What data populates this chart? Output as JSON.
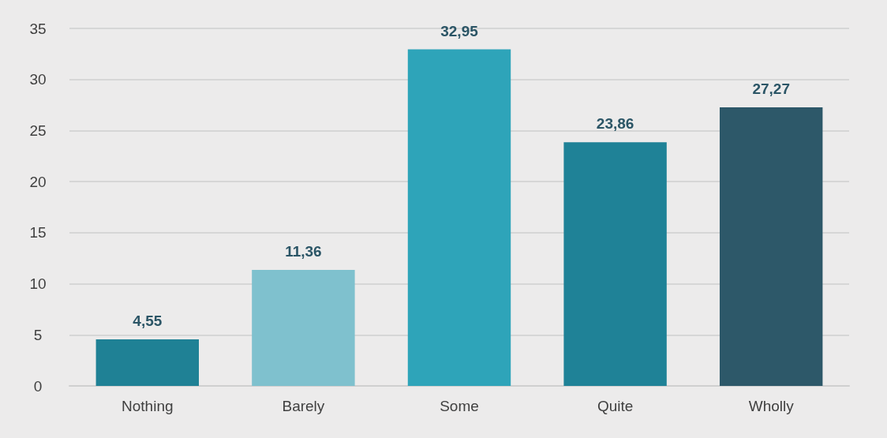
{
  "chart_data": {
    "type": "bar",
    "categories": [
      "Nothing",
      "Barely",
      "Some",
      "Quite",
      "Wholly"
    ],
    "values": [
      4.55,
      11.36,
      32.95,
      23.86,
      27.27
    ],
    "colors": [
      "#1f8195",
      "#7fc1ce",
      "#2ea4b9",
      "#1f8297",
      "#2d5869"
    ],
    "value_labels": [
      "4,55",
      "11,36",
      "32,95",
      "23,86",
      "27,27"
    ],
    "ylim": [
      0,
      35
    ],
    "yticks": [
      0,
      5,
      10,
      15,
      20,
      25,
      30,
      35
    ],
    "grid": "y"
  }
}
